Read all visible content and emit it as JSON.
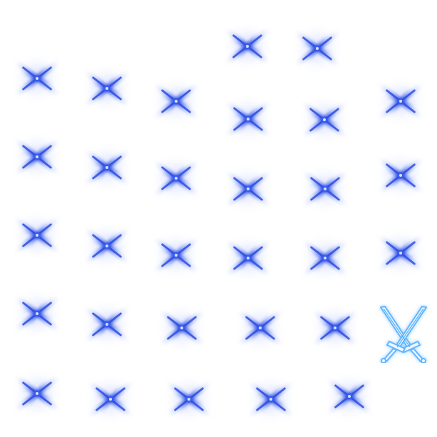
{
  "sprite_sheet": {
    "background": "#ffffff",
    "effect": {
      "icon": "sparkle-x-icon",
      "glow_color": "#3f63ea",
      "core_color": "#1f3fd8"
    },
    "special_icon": {
      "icon": "crossed-swords-icon",
      "outline_color": "#8ccaff",
      "glow_color": "#49a8ff"
    }
  }
}
